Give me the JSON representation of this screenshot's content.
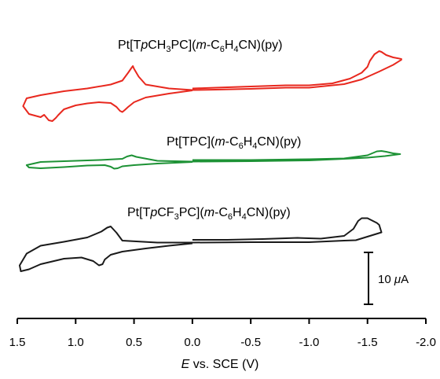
{
  "chart_data": {
    "type": "line",
    "title": "",
    "xlabel": {
      "var": "E",
      "rest": " vs. SCE (V)"
    },
    "ylabel": "",
    "xlim": [
      1.5,
      -2.0
    ],
    "x_reversed": true,
    "x_ticks": [
      {
        "value": 1.5,
        "label": "1.5"
      },
      {
        "value": 1.0,
        "label": "1.0"
      },
      {
        "value": 0.5,
        "label": "0.5"
      },
      {
        "value": 0.0,
        "label": "0.0"
      },
      {
        "value": -0.5,
        "label": "-0.5"
      },
      {
        "value": -1.0,
        "label": "-1.0"
      },
      {
        "value": -1.5,
        "label": "-1.5"
      },
      {
        "value": -2.0,
        "label": "-2.0"
      }
    ],
    "y_axis_shown": false,
    "grid": false,
    "scale_bar": {
      "value": 10,
      "prefix": "10 ",
      "mu": "μ",
      "unit": "A"
    },
    "series": [
      {
        "id": "ch3",
        "name": "Pt[TpCH3PC](m-C6H4CN)(py)",
        "label": {
          "a": "Pt[T",
          "b": "p",
          "c": "CH",
          "c_sub": "3",
          "d": "PC](",
          "e": "m",
          "f": "-C",
          "f_sub": "6",
          "g": "H",
          "g_sub": "4",
          "h": "CN)(py)"
        },
        "color": "#e8281e",
        "x": [
          0.0,
          -0.2,
          -0.5,
          -0.8,
          -1.0,
          -1.2,
          -1.35,
          -1.45,
          -1.5,
          -1.52,
          -1.56,
          -1.6,
          -1.62,
          -1.66,
          -1.72,
          -1.79,
          -1.79,
          -1.72,
          -1.6,
          -1.45,
          -1.3,
          -1.0,
          -0.8,
          -0.5,
          -0.2,
          0.0,
          0.2,
          0.4,
          0.46,
          0.5,
          0.51,
          0.52,
          0.55,
          0.6,
          0.7,
          0.9,
          1.1,
          1.3,
          1.42,
          1.45,
          1.4,
          1.3,
          1.27,
          1.25,
          1.23,
          1.2,
          1.17,
          1.15,
          1.1,
          1.0,
          0.9,
          0.8,
          0.7,
          0.65,
          0.62,
          0.6,
          0.58,
          0.55,
          0.5,
          0.4,
          0.2,
          0.0
        ],
        "y": [
          -0.5,
          -0.3,
          0.0,
          0.3,
          0.3,
          0.8,
          2.0,
          3.5,
          5.0,
          6.5,
          8.2,
          9.0,
          8.8,
          8.0,
          7.4,
          7.0,
          6.8,
          5.5,
          3.8,
          1.8,
          0.6,
          -0.3,
          -0.3,
          -0.6,
          -0.8,
          -0.9,
          -0.5,
          0.5,
          2.5,
          4.5,
          5.2,
          4.8,
          3.5,
          1.5,
          0.5,
          -0.5,
          -1.2,
          -2.2,
          -3.0,
          -5.0,
          -7.0,
          -7.8,
          -7.2,
          -7.9,
          -8.6,
          -8.8,
          -8.0,
          -7.3,
          -5.8,
          -4.8,
          -4.3,
          -4.0,
          -4.2,
          -5.2,
          -6.2,
          -6.5,
          -6.0,
          -5.2,
          -4.0,
          -2.8,
          -1.8,
          -1.0
        ]
      },
      {
        "id": "tpc",
        "name": "Pt[TPC](m-C6H4CN)(py)",
        "label": {
          "a": "Pt[TPC](",
          "e": "m",
          "f": "-C",
          "f_sub": "6",
          "g": "H",
          "g_sub": "4",
          "h": "CN)(py)"
        },
        "color": "#1d9235",
        "x": [
          0.0,
          -0.5,
          -1.0,
          -1.3,
          -1.5,
          -1.58,
          -1.62,
          -1.66,
          -1.72,
          -1.78,
          -1.65,
          -1.5,
          -1.3,
          -1.0,
          -0.5,
          0.0,
          0.3,
          0.48,
          0.52,
          0.56,
          0.6,
          0.8,
          1.1,
          1.3,
          1.42,
          1.4,
          1.3,
          1.1,
          0.9,
          0.75,
          0.7,
          0.67,
          0.64,
          0.6,
          0.5,
          0.3,
          0.0
        ],
        "y": [
          -0.3,
          -0.3,
          -0.1,
          0.1,
          0.9,
          1.9,
          2.0,
          1.8,
          1.4,
          1.2,
          0.7,
          0.3,
          0.0,
          -0.4,
          -0.6,
          -0.7,
          -0.5,
          0.5,
          0.9,
          0.6,
          0.0,
          -0.3,
          -0.6,
          -0.8,
          -1.6,
          -2.2,
          -2.4,
          -2.1,
          -1.7,
          -1.6,
          -2.0,
          -2.5,
          -2.4,
          -1.9,
          -1.6,
          -1.2,
          -0.8
        ]
      },
      {
        "id": "cf3",
        "name": "Pt[TpCF3PC](m-C6H4CN)(py)",
        "label": {
          "a": "Pt[T",
          "b": "p",
          "c": "CF",
          "c_sub": "3",
          "d": "PC](",
          "e": "m",
          "f": "-C",
          "f_sub": "6",
          "g": "H",
          "g_sub": "4",
          "h": "CN)(py)"
        },
        "color": "#1a1a1a",
        "x": [
          0.0,
          -0.3,
          -0.6,
          -0.9,
          -1.1,
          -1.3,
          -1.38,
          -1.42,
          -1.45,
          -1.5,
          -1.58,
          -1.6,
          -1.62,
          -1.4,
          -1.3,
          -1.0,
          -0.5,
          0.0,
          0.3,
          0.6,
          0.65,
          0.7,
          0.73,
          0.78,
          0.9,
          1.1,
          1.3,
          1.42,
          1.48,
          1.47,
          1.4,
          1.3,
          1.1,
          0.95,
          0.85,
          0.8,
          0.77,
          0.75,
          0.7,
          0.6,
          0.4,
          0.2,
          0.0
        ],
        "y": [
          0.0,
          0.0,
          0.2,
          0.5,
          0.3,
          1.0,
          2.8,
          4.8,
          5.5,
          5.5,
          4.3,
          3.8,
          1.9,
          -0.1,
          -0.2,
          -0.6,
          -0.6,
          -0.7,
          -0.7,
          -0.2,
          1.8,
          3.4,
          3.1,
          2.1,
          0.6,
          -0.5,
          -1.5,
          -3.5,
          -6.5,
          -8.0,
          -7.5,
          -6.2,
          -4.8,
          -4.5,
          -5.4,
          -6.5,
          -6.2,
          -5.0,
          -3.8,
          -3.0,
          -2.2,
          -1.5,
          -0.9
        ]
      }
    ]
  }
}
